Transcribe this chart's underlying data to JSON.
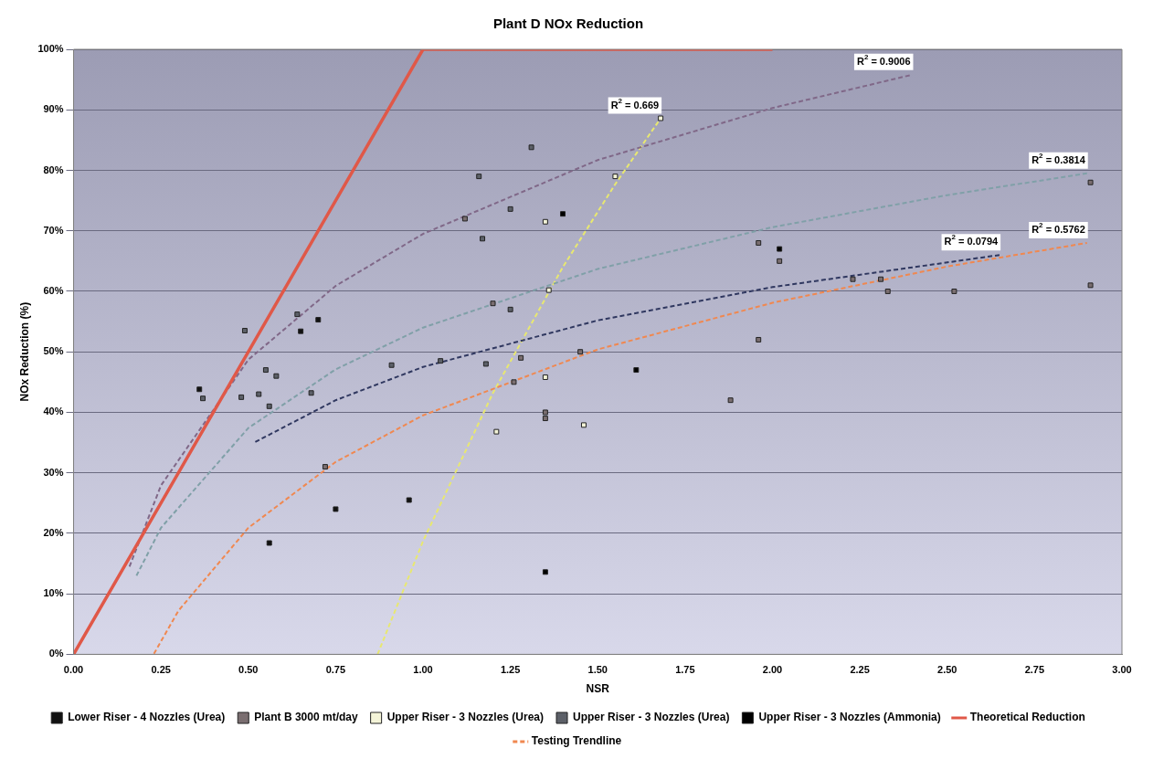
{
  "chart_data": {
    "type": "scatter",
    "title": "Plant D NOx Reduction",
    "xlabel": "NSR",
    "ylabel": "NOx Reduction (%)",
    "xlim": [
      0,
      3
    ],
    "ylim": [
      0,
      100
    ],
    "xticks": [
      {
        "value": 0,
        "label": "0.00"
      },
      {
        "value": 0.25,
        "label": "0.25"
      },
      {
        "value": 0.5,
        "label": "0.50"
      },
      {
        "value": 0.75,
        "label": "0.75"
      },
      {
        "value": 1,
        "label": "1.00"
      },
      {
        "value": 1.25,
        "label": "1.25"
      },
      {
        "value": 1.5,
        "label": "1.50"
      },
      {
        "value": 1.75,
        "label": "1.75"
      },
      {
        "value": 2,
        "label": "2.00"
      },
      {
        "value": 2.25,
        "label": "2.25"
      },
      {
        "value": 2.5,
        "label": "2.50"
      },
      {
        "value": 2.75,
        "label": "2.75"
      },
      {
        "value": 3,
        "label": "3.00"
      }
    ],
    "yticks": [
      {
        "value": 0,
        "label": "0%"
      },
      {
        "value": 10,
        "label": "10%"
      },
      {
        "value": 20,
        "label": "20%"
      },
      {
        "value": 30,
        "label": "30%"
      },
      {
        "value": 40,
        "label": "40%"
      },
      {
        "value": 50,
        "label": "50%"
      },
      {
        "value": 60,
        "label": "60%"
      },
      {
        "value": 70,
        "label": "70%"
      },
      {
        "value": 80,
        "label": "80%"
      },
      {
        "value": 90,
        "label": "90%"
      },
      {
        "value": 100,
        "label": "100%"
      }
    ],
    "grid": "y",
    "legend": "bottom",
    "marker": "square",
    "series": [
      {
        "name": "Lower Riser - 4 Nozzles (Urea)",
        "color": "#111111",
        "x": [
          0.36,
          0.56,
          0.65,
          0.7,
          0.75,
          0.96
        ],
        "values": [
          43.8,
          18.4,
          53.4,
          55.3,
          24,
          25.5
        ]
      },
      {
        "name": "Plant B 3000 mt/day",
        "color": "#7a6e70",
        "x": [
          0.72,
          1.12,
          1.2,
          1.26,
          1.28,
          1.35,
          1.35,
          1.45,
          1.88,
          1.96,
          1.96,
          2.02,
          2.23,
          2.31,
          2.33,
          2.52,
          2.91,
          2.91
        ],
        "values": [
          31,
          72,
          58,
          45,
          49,
          40,
          39,
          50,
          42,
          52,
          68,
          65,
          62,
          62,
          60,
          60,
          78,
          61
        ]
      },
      {
        "name": "Upper Riser - 3 Nozzles (Urea)",
        "color": "#f4f4d8",
        "x": [
          1.21,
          1.35,
          1.36,
          1.35,
          1.46,
          1.55,
          1.68
        ],
        "values": [
          36.8,
          45.8,
          60.2,
          71.5,
          37.9,
          79,
          88.6
        ]
      },
      {
        "name": "Upper Riser - 3 Nozzles (Urea)",
        "color": "#5c6068",
        "x": [
          0.37,
          0.48,
          0.49,
          0.53,
          0.55,
          0.56,
          0.58,
          0.64,
          0.68,
          0.91,
          1.05,
          1.16,
          1.17,
          1.18,
          1.25,
          1.25,
          1.31
        ],
        "values": [
          42.3,
          42.5,
          53.5,
          43,
          47,
          41,
          46,
          56.2,
          43.2,
          47.8,
          48.5,
          79,
          68.7,
          48,
          73.6,
          57,
          83.8
        ]
      },
      {
        "name": "Upper Riser - 3 Nozzles (Ammonia)",
        "color": "#000000",
        "x": [
          1.35,
          1.4,
          1.61,
          2.02
        ],
        "values": [
          13.6,
          72.8,
          47,
          67
        ]
      },
      {
        "name": "Theoretical Reduction",
        "type": "line",
        "color": "#e05848",
        "marker": "none",
        "line_style": "solid",
        "x": [
          0,
          1,
          2
        ],
        "values": [
          0,
          100,
          100
        ]
      },
      {
        "name": "Testing Trendline",
        "type": "line",
        "color": "#f08850",
        "marker": "none",
        "line_style": "dashed",
        "x": [
          0.23,
          0.3,
          0.5,
          0.75,
          1,
          1.5,
          2,
          2.5,
          2.9
        ],
        "values": [
          0.1,
          7.2,
          20.9,
          31.8,
          39.5,
          50.4,
          58.1,
          64.1,
          68
        ]
      },
      {
        "type": "line",
        "color": "#806888",
        "marker": "none",
        "line_style": "dashed",
        "x": [
          0.16,
          0.25,
          0.5,
          0.75,
          1,
          1.5,
          2,
          2.4
        ],
        "values": [
          14.5,
          27.9,
          48.7,
          60.9,
          69.5,
          81.7,
          90.3,
          95.8
        ]
      },
      {
        "type": "line",
        "color": "#80a0a8",
        "marker": "none",
        "line_style": "dashed",
        "x": [
          0.18,
          0.25,
          0.5,
          0.75,
          1,
          1.5,
          2,
          2.5,
          2.9
        ],
        "values": [
          13,
          20.9,
          37.4,
          47.1,
          54,
          63.7,
          70.6,
          75.9,
          79.5
        ]
      },
      {
        "type": "line",
        "color": "#303860",
        "marker": "none",
        "line_style": "dashed",
        "x": [
          0.52,
          0.75,
          1,
          1.5,
          2,
          2.65
        ],
        "values": [
          35.1,
          42,
          47.5,
          55.2,
          60.7,
          66
        ]
      },
      {
        "type": "line",
        "color": "#e8e870",
        "marker": "none",
        "line_style": "dashed",
        "x": [
          0.87,
          1,
          1.2,
          1.4,
          1.55,
          1.68
        ],
        "values": [
          0,
          18.7,
          43.2,
          64,
          77.7,
          88.6
        ]
      }
    ],
    "annotations": [
      "R$^{2}$ = 0.5762",
      "R$^{2}$ = 0.9006",
      "R$^{2}$ = 0.3814",
      "R$^{2}$ = 0.0794",
      "R$^{2}$ = 0.669"
    ]
  }
}
